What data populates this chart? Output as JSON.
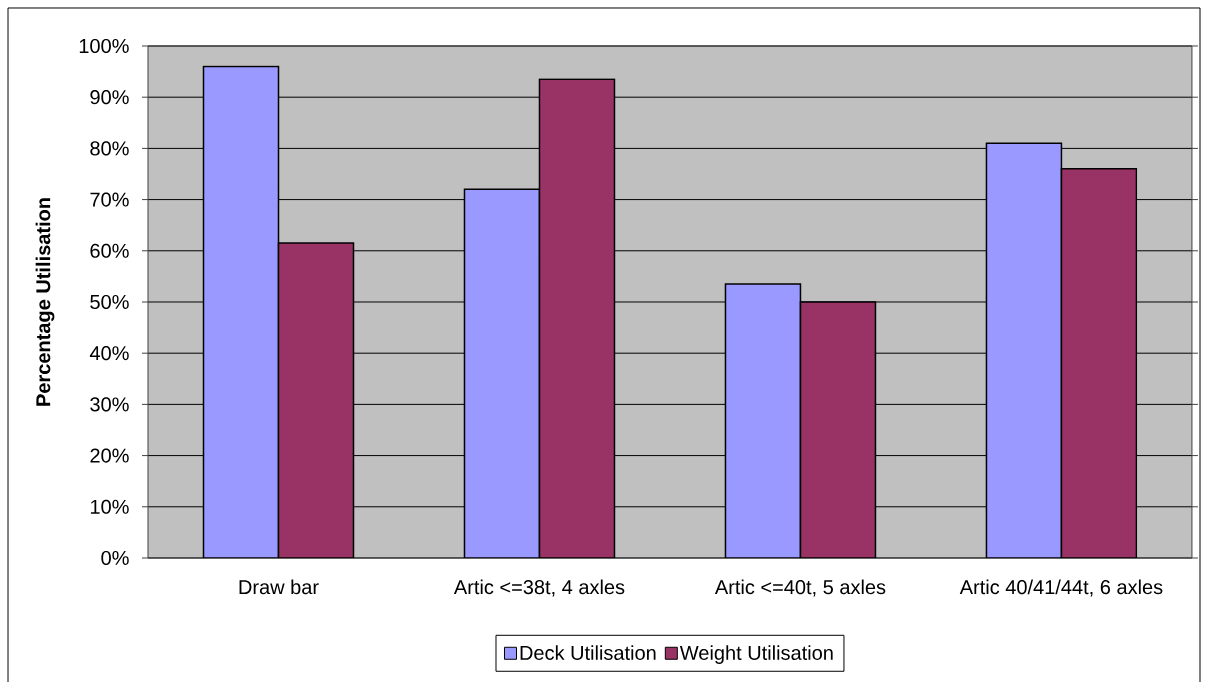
{
  "chart_data": {
    "type": "bar",
    "ylabel": "Percentage Utilisation",
    "categories": [
      "Draw bar",
      "Artic <=38t, 4 axles",
      "Artic <=40t, 5 axles",
      "Artic 40/41/44t, 6 axles"
    ],
    "series": [
      {
        "name": "Deck Utilisation",
        "color": "#9999ff",
        "values": [
          96,
          72,
          53.5,
          81
        ]
      },
      {
        "name": "Weight Utilisation",
        "color": "#993366",
        "values": [
          61.5,
          93.5,
          50,
          76
        ]
      }
    ],
    "ylim": [
      0,
      100
    ],
    "yticks": [
      {
        "value": 0,
        "label": "0%"
      },
      {
        "value": 10,
        "label": "10%"
      },
      {
        "value": 20,
        "label": "20%"
      },
      {
        "value": 30,
        "label": "30%"
      },
      {
        "value": 40,
        "label": "40%"
      },
      {
        "value": 50,
        "label": "50%"
      },
      {
        "value": 60,
        "label": "60%"
      },
      {
        "value": 70,
        "label": "70%"
      },
      {
        "value": 80,
        "label": "80%"
      },
      {
        "value": 90,
        "label": "90%"
      },
      {
        "value": 100,
        "label": "100%"
      }
    ],
    "grid": "y",
    "legend": "bottom"
  }
}
